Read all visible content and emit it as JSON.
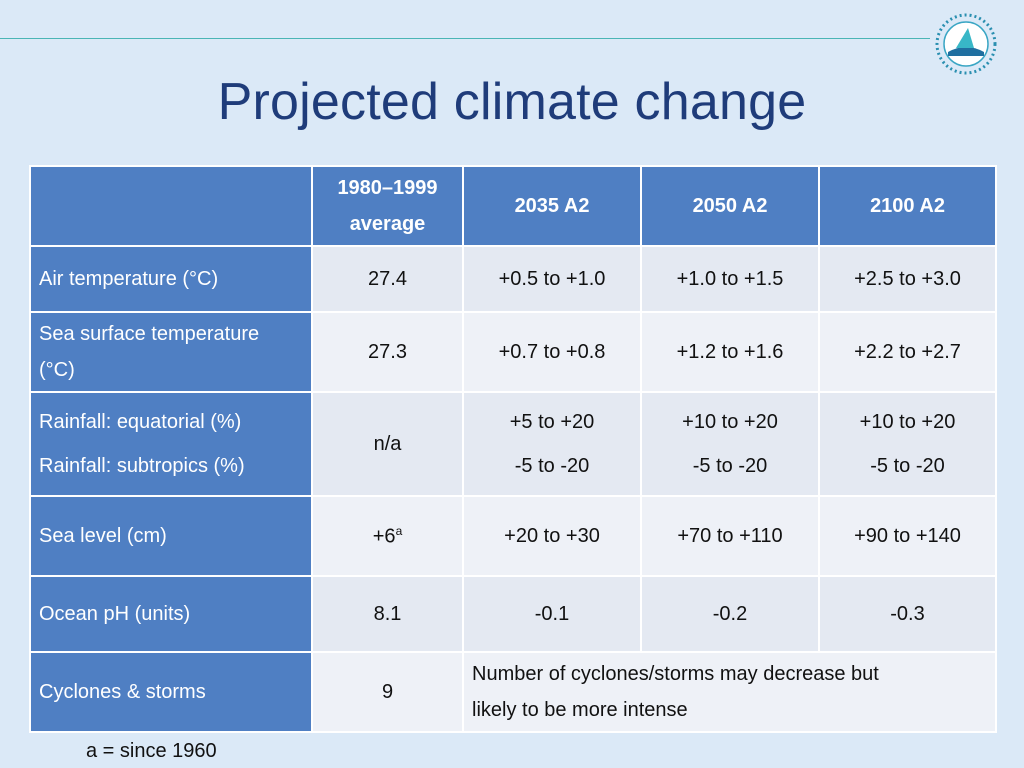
{
  "slide": {
    "title": "Projected climate change",
    "footnote": "a = since 1960"
  },
  "table": {
    "headers": [
      "",
      "1980–1999 average",
      "2035 A2",
      "2050 A2",
      "2100 A2"
    ],
    "header_baseline_line1": "1980–1999",
    "header_baseline_line2": "average",
    "rows": {
      "air_temp": {
        "label": "Air temperature (°C)",
        "baseline": "27.4",
        "y2035": "+0.5 to +1.0",
        "y2050": "+1.0 to +1.5",
        "y2100": "+2.5 to +3.0"
      },
      "sst": {
        "label_line1": "Sea surface temperature",
        "label_line2": "(°C)",
        "baseline": "27.3",
        "y2035": "+0.7 to +0.8",
        "y2050": "+1.2 to +1.6",
        "y2100": "+2.2 to +2.7"
      },
      "rainfall": {
        "label_equatorial": "Rainfall: equatorial (%)",
        "label_subtropics": "Rainfall: subtropics (%)",
        "baseline": "n/a",
        "y2035_eq": "+5 to +20",
        "y2035_sub": "-5 to -20",
        "y2050_eq": "+10 to +20",
        "y2050_sub": "-5 to -20",
        "y2100_eq": "+10 to +20",
        "y2100_sub": "-5 to -20"
      },
      "sea_level": {
        "label": "Sea level (cm)",
        "baseline": "+6",
        "baseline_sup": "a",
        "y2035": "+20 to +30",
        "y2050": "+70 to +110",
        "y2100": "+90 to +140"
      },
      "ocean_ph": {
        "label": "Ocean pH (units)",
        "baseline": "8.1",
        "y2035": "-0.1",
        "y2050": "-0.2",
        "y2100": "-0.3"
      },
      "cyclones": {
        "label": "Cyclones & storms",
        "baseline": "9",
        "projection_line1": "Number of cyclones/storms may decrease but",
        "projection_line2": "likely to be more intense"
      }
    }
  },
  "colors": {
    "background": "#dbe9f7",
    "header_blue": "#4f7fc3",
    "title_blue": "#1f3c7a",
    "accent_teal": "#4ab5b5"
  },
  "icons": {
    "logo": "spc-logo-icon"
  }
}
